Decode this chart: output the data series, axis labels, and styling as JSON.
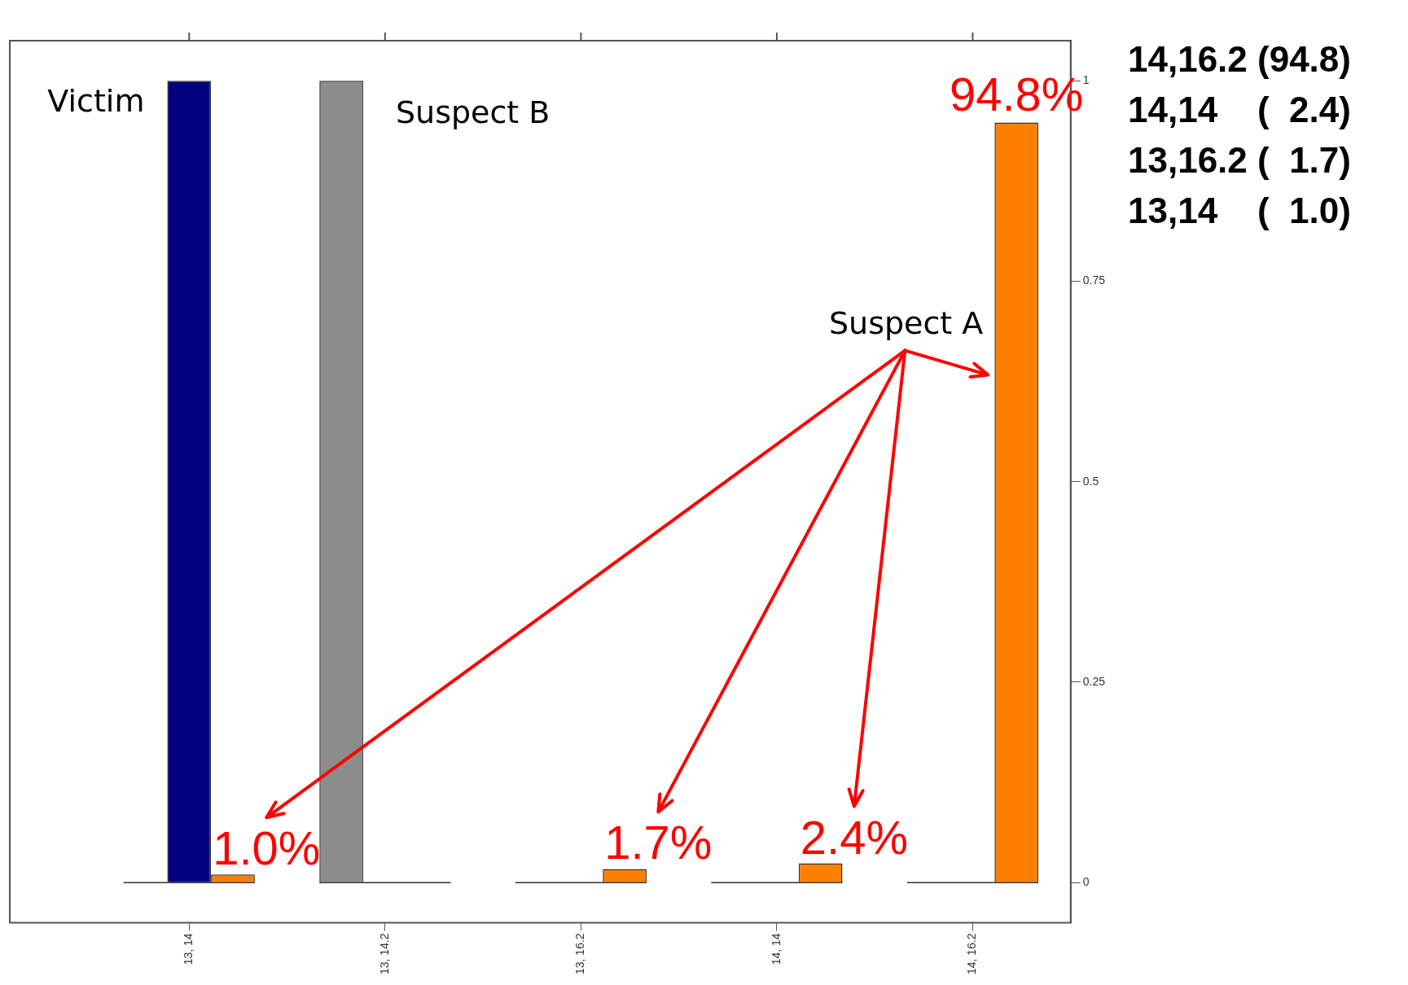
{
  "chart_data": {
    "type": "bar",
    "categories": [
      "13, 14",
      "13, 14.2",
      "13, 16.2",
      "14, 14",
      "14, 16.2"
    ],
    "series": [
      {
        "name": "Suspect B",
        "color": "#8c8c8c",
        "values": [
          0,
          1,
          0,
          0,
          0
        ]
      },
      {
        "name": "Victim",
        "color": "#000080",
        "values": [
          1,
          0,
          0,
          0,
          0
        ]
      },
      {
        "name": "Suspect A",
        "color": "#ff8000",
        "values": [
          0.01,
          0,
          0.017,
          0.024,
          0.948
        ],
        "value_labels": [
          "1.0%",
          null,
          "1.7%",
          "2.4%",
          "94.8%"
        ]
      }
    ],
    "ylim": [
      -0.05,
      1.05
    ],
    "yticks": [
      0,
      0.25,
      0.5,
      0.75,
      1
    ],
    "grid": false,
    "legend": false,
    "ref_lines": [
      {
        "axis": "y",
        "value": 0,
        "color": "#333333"
      }
    ],
    "annotations": [
      "14,16.2 (94.8)",
      "14,14    (  2.4)",
      "13,16.2 (  1.7)",
      "13,14    (  1.0)"
    ]
  }
}
